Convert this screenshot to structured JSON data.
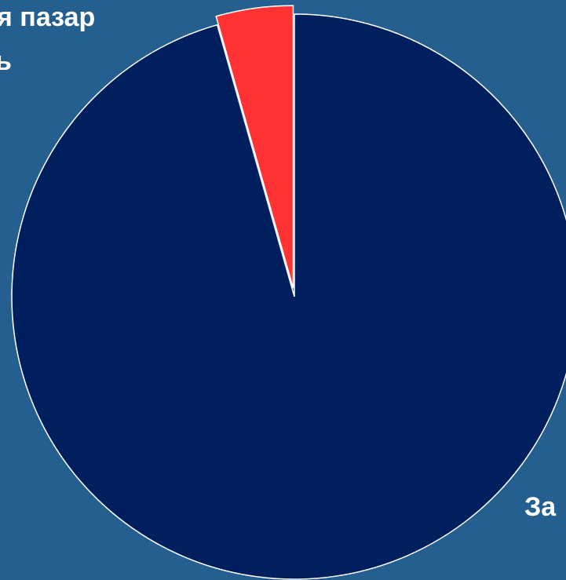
{
  "chart_data": {
    "type": "pie",
    "categories": [
      "я пазар",
      "За"
    ],
    "values": [
      4.4,
      95.6
    ],
    "colors": [
      "#ff3333",
      "#001f5f"
    ],
    "annotations": [
      "ь"
    ]
  }
}
